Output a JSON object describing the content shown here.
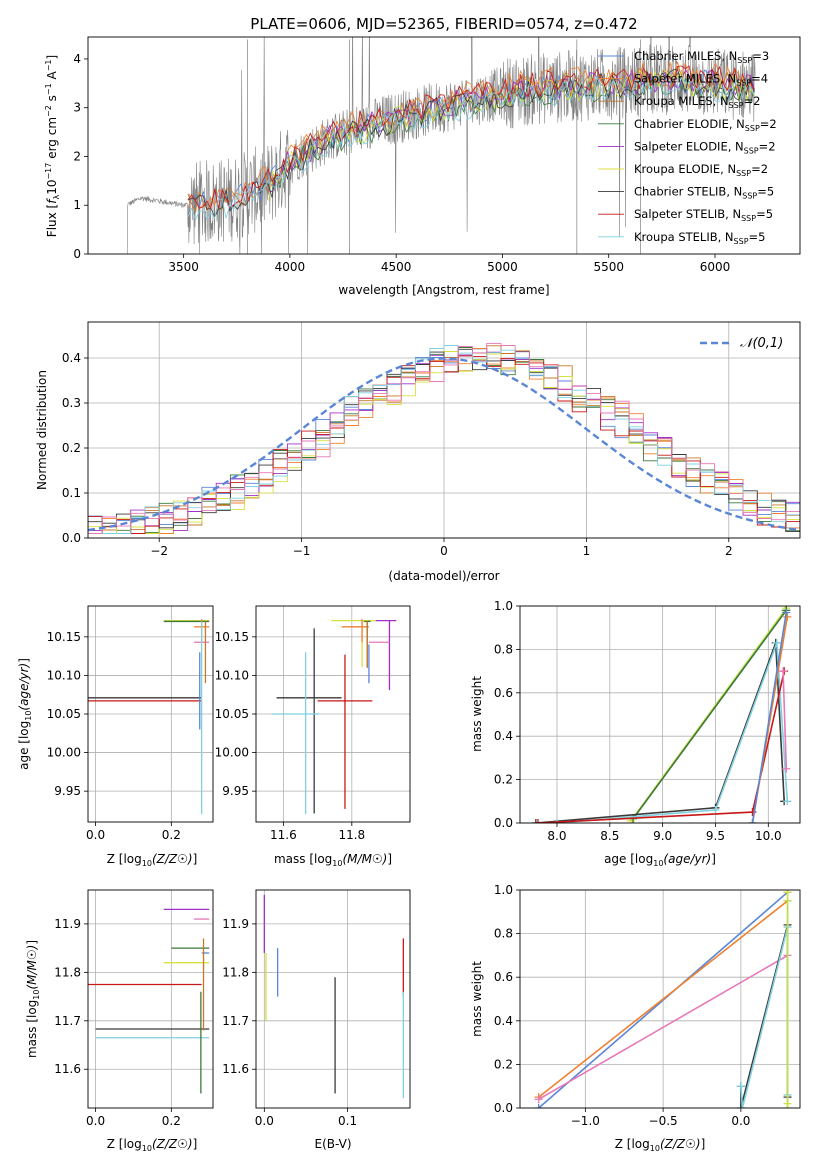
{
  "figure_title": "PLATE=0606, MJD=52365, FIBERID=0574, z=0.472",
  "colors": {
    "Chabrier MILES": "#5a86d6",
    "Salpeter MILES": "#f08030",
    "Kroupa MILES": "#c8782a",
    "Chabrier ELODIE": "#3a7a3a",
    "Salpeter ELODIE": "#a030c8",
    "Kroupa ELODIE": "#d8e040",
    "Chabrier STELIB": "#3a3a3a",
    "Salpeter STELIB": "#c81818",
    "Kroupa STELIB": "#80d0e0",
    "extra_pink": "#e878b8",
    "extra_lime": "#b8e050",
    "spectrum_data": "#808080",
    "grid": "#b0b0b0"
  },
  "chart_data": [
    {
      "id": "spectrum",
      "type": "line",
      "xlabel": "wavelength [Angstrom, rest frame]",
      "ylabel": "Flux [f_λ 10^-17 erg cm^-2 s^-1 A^-1]",
      "xlim": [
        3050,
        6400
      ],
      "ylim": [
        0,
        4.45
      ],
      "xticks": [
        3500,
        4000,
        4500,
        5000,
        5500,
        6000
      ],
      "yticks": [
        0,
        1,
        2,
        3,
        4
      ],
      "grid": false,
      "legend_position": "top-right",
      "legend": [
        {
          "base": "Chabrier MILES, N",
          "sub": "SSP",
          "tail": "=3"
        },
        {
          "base": "Salpeter MILES, N",
          "sub": "SSP",
          "tail": "=4"
        },
        {
          "base": "Kroupa MILES, N",
          "sub": "SSP",
          "tail": "=2"
        },
        {
          "base": "Chabrier ELODIE, N",
          "sub": "SSP",
          "tail": "=2"
        },
        {
          "base": "Salpeter ELODIE, N",
          "sub": "SSP",
          "tail": "=2"
        },
        {
          "base": "Kroupa ELODIE, N",
          "sub": "SSP",
          "tail": "=2"
        },
        {
          "base": "Chabrier STELIB, N",
          "sub": "SSP",
          "tail": "=5"
        },
        {
          "base": "Salpeter STELIB, N",
          "sub": "SSP",
          "tail": "=5"
        },
        {
          "base": "Kroupa STELIB, N",
          "sub": "SSP",
          "tail": "=5"
        }
      ],
      "legend_series": [
        "Chabrier MILES",
        "Salpeter MILES",
        "Kroupa MILES",
        "Chabrier ELODIE",
        "Salpeter ELODIE",
        "Kroupa ELODIE",
        "Chabrier STELIB",
        "Salpeter STELIB",
        "Kroupa STELIB"
      ],
      "data_start": 3230,
      "data_end": 6190,
      "continuum": [
        [
          3230,
          1.0
        ],
        [
          3300,
          1.15
        ],
        [
          3500,
          1.0
        ],
        [
          3700,
          1.1
        ],
        [
          3900,
          1.4
        ],
        [
          4000,
          1.9
        ],
        [
          4200,
          2.4
        ],
        [
          4500,
          2.8
        ],
        [
          4800,
          3.1
        ],
        [
          5000,
          3.3
        ],
        [
          5200,
          3.4
        ],
        [
          5500,
          3.5
        ],
        [
          5800,
          3.6
        ],
        [
          6000,
          3.5
        ],
        [
          6190,
          3.45
        ]
      ],
      "models": [
        {
          "name": "Chabrier MILES",
          "start": 3520,
          "end": 6190,
          "offset": 0.0
        },
        {
          "name": "Salpeter MILES",
          "start": 3520,
          "end": 6190,
          "offset": 0.15
        },
        {
          "name": "Kroupa MILES",
          "start": 3520,
          "end": 6190,
          "offset": 0.05
        },
        {
          "name": "Chabrier ELODIE",
          "start": 3900,
          "end": 6190,
          "offset": -0.1
        },
        {
          "name": "Salpeter ELODIE",
          "start": 3900,
          "end": 6190,
          "offset": 0.0
        },
        {
          "name": "Kroupa ELODIE",
          "start": 3900,
          "end": 6190,
          "offset": -0.05
        },
        {
          "name": "Chabrier STELIB",
          "start": 3520,
          "end": 6190,
          "offset": -0.05
        },
        {
          "name": "Salpeter STELIB",
          "start": 3520,
          "end": 6190,
          "offset": 0.1
        },
        {
          "name": "Kroupa STELIB",
          "start": 3520,
          "end": 6190,
          "offset": -0.1
        }
      ]
    },
    {
      "id": "residuals",
      "type": "step",
      "xlabel": "(data-model)/error",
      "ylabel": "Normed distribution",
      "xlim": [
        -2.5,
        2.5
      ],
      "ylim": [
        0,
        0.48
      ],
      "xticks": [
        -2,
        -1,
        0,
        1,
        2
      ],
      "yticks": [
        0.0,
        0.1,
        0.2,
        0.3,
        0.4
      ],
      "grid": true,
      "legend_position": "top-right",
      "reference_curve": {
        "name": "𝒩(0,1)",
        "mean": 0,
        "sigma": 1,
        "color": "#5a86d6",
        "dashed": true
      },
      "bin_width": 0.1,
      "series_order": [
        "Chabrier MILES",
        "Salpeter MILES",
        "Kroupa MILES",
        "Chabrier ELODIE",
        "Salpeter ELODIE",
        "Kroupa ELODIE",
        "Chabrier STELIB",
        "Salpeter STELIB",
        "Kroupa STELIB",
        "extra_pink"
      ],
      "series_shift": [
        0.0,
        0.18,
        0.15,
        -0.05,
        0.1,
        0.2,
        0.05,
        -0.1,
        -0.08,
        0.25
      ]
    },
    {
      "id": "age_vs_Z",
      "type": "errorbar",
      "xlabel": "Z [log10(Z/Z☉)]",
      "ylabel": "age  [log10(age/yr)]",
      "xlim": [
        -0.02,
        0.31
      ],
      "ylim": [
        9.91,
        10.19
      ],
      "xticks": [
        0.0,
        0.2
      ],
      "yticks": [
        9.95,
        10.0,
        10.05,
        10.1,
        10.15
      ],
      "grid": true,
      "points": [
        {
          "s": "Kroupa ELODIE",
          "x": 0.22,
          "y": 10.171,
          "xl": 0.04,
          "xh": 0.08,
          "yl": 0.0,
          "yh": 0.0
        },
        {
          "s": "Chabrier ELODIE",
          "x": 0.24,
          "y": 10.17,
          "xl": 0.06,
          "xh": 0.06,
          "yl": 0.0,
          "yh": 0.0
        },
        {
          "s": "Salpeter MILES",
          "x": 0.28,
          "y": 10.163,
          "xl": 0.02,
          "xh": 0.02,
          "yl": 0.02,
          "yh": 0.01
        },
        {
          "s": "extra_pink",
          "x": 0.28,
          "y": 10.143,
          "xl": 0.02,
          "xh": 0.02,
          "yl": 0.0,
          "yh": 0.0
        },
        {
          "s": "Kroupa MILES",
          "x": 0.29,
          "y": 10.17,
          "xl": 0.0,
          "xh": 0.0,
          "yl": 0.08,
          "yh": 0.0
        },
        {
          "s": "Chabrier STELIB",
          "x": 0.13,
          "y": 10.071,
          "xl": 0.15,
          "xh": 0.15,
          "yl": 0.0,
          "yh": 0.0
        },
        {
          "s": "Salpeter STELIB",
          "x": 0.13,
          "y": 10.067,
          "xl": 0.15,
          "xh": 0.15,
          "yl": 0.0,
          "yh": 0.0
        },
        {
          "s": "Kroupa STELIB",
          "x": 0.28,
          "y": 10.05,
          "xl": 0.0,
          "xh": 0.0,
          "yl": 0.13,
          "yh": 0.12
        },
        {
          "s": "Chabrier MILES",
          "x": 0.275,
          "y": 10.09,
          "xl": 0.0,
          "xh": 0.0,
          "yl": 0.06,
          "yh": 0.04
        }
      ]
    },
    {
      "id": "age_vs_mass",
      "type": "errorbar",
      "xlabel": "mass [log10(M/M☉)]",
      "ylabel": "",
      "xlim": [
        11.52,
        11.97
      ],
      "ylim": [
        9.91,
        10.19
      ],
      "xticks": [
        11.6,
        11.8
      ],
      "yticks": [
        9.95,
        10.0,
        10.05,
        10.1,
        10.15
      ],
      "grid": true,
      "points": [
        {
          "s": "Kroupa ELODIE",
          "x": 11.83,
          "y": 10.171,
          "xl": 0.09,
          "xh": 0.04,
          "yl": 0.06,
          "yh": 0.0
        },
        {
          "s": "Salpeter ELODIE",
          "x": 11.91,
          "y": 10.171,
          "xl": 0.04,
          "xh": 0.02,
          "yl": 0.09,
          "yh": 0.0
        },
        {
          "s": "Salpeter MILES",
          "x": 11.83,
          "y": 10.163,
          "xl": 0.06,
          "xh": 0.02,
          "yl": 0.02,
          "yh": 0.01
        },
        {
          "s": "extra_pink",
          "x": 11.87,
          "y": 10.143,
          "xl": 0.02,
          "xh": 0.04,
          "yl": 0.0,
          "yh": 0.0
        },
        {
          "s": "Chabrier ELODIE",
          "x": 11.845,
          "y": 10.17,
          "xl": 0.01,
          "xh": 0.01,
          "yl": 0.06,
          "yh": 0.0
        },
        {
          "s": "Kroupa MILES",
          "x": 11.845,
          "y": 10.17,
          "xl": 0.0,
          "xh": 0.0,
          "yl": 0.06,
          "yh": 0.0
        },
        {
          "s": "Chabrier STELIB",
          "x": 11.69,
          "y": 10.071,
          "xl": 0.11,
          "xh": 0.08,
          "yl": 0.15,
          "yh": 0.09
        },
        {
          "s": "Salpeter STELIB",
          "x": 11.78,
          "y": 10.067,
          "xl": 0.08,
          "xh": 0.08,
          "yl": 0.14,
          "yh": 0.06
        },
        {
          "s": "Kroupa STELIB",
          "x": 11.665,
          "y": 10.05,
          "xl": 0.1,
          "xh": 0.04,
          "yl": 0.13,
          "yh": 0.08
        },
        {
          "s": "Chabrier MILES",
          "x": 11.85,
          "y": 10.12,
          "xl": 0.0,
          "xh": 0.0,
          "yl": 0.03,
          "yh": 0.02
        }
      ]
    },
    {
      "id": "weight_vs_age",
      "type": "line",
      "xlabel": "age  [log10(age/yr)]",
      "ylabel": "mass weight",
      "xlim": [
        7.65,
        10.3
      ],
      "ylim": [
        0,
        1.0
      ],
      "xticks": [
        8.0,
        8.5,
        9.0,
        9.5,
        10.0
      ],
      "yticks": [
        0.0,
        0.2,
        0.4,
        0.6,
        0.8,
        1.0
      ],
      "grid": true,
      "series": [
        {
          "s": "Kroupa ELODIE",
          "points": [
            [
              8.7,
              0.01
            ],
            [
              10.17,
              0.99
            ]
          ]
        },
        {
          "s": "extra_lime",
          "points": [
            [
              8.72,
              0.02
            ],
            [
              10.16,
              0.98
            ]
          ]
        },
        {
          "s": "Chabrier ELODIE",
          "points": [
            [
              8.72,
              0.02
            ],
            [
              10.17,
              0.98
            ]
          ]
        },
        {
          "s": "Chabrier STELIB",
          "points": [
            [
              7.8,
              0.0
            ],
            [
              9.5,
              0.07
            ],
            [
              10.07,
              0.83
            ],
            [
              10.15,
              0.1
            ]
          ]
        },
        {
          "s": "Kroupa STELIB",
          "points": [
            [
              8.0,
              0.0
            ],
            [
              9.5,
              0.06
            ],
            [
              10.08,
              0.83
            ],
            [
              10.18,
              0.1
            ]
          ]
        },
        {
          "s": "Salpeter STELIB",
          "points": [
            [
              7.82,
              0.0
            ],
            [
              9.85,
              0.05
            ],
            [
              10.15,
              0.7
            ]
          ]
        },
        {
          "s": "Salpeter MILES",
          "points": [
            [
              9.85,
              0.0
            ],
            [
              10.18,
              0.95
            ]
          ]
        },
        {
          "s": "Chabrier MILES",
          "points": [
            [
              9.85,
              0.0
            ],
            [
              10.17,
              0.97
            ]
          ]
        },
        {
          "s": "extra_pink",
          "points": [
            [
              10.14,
              0.7
            ],
            [
              10.17,
              0.25
            ]
          ]
        }
      ]
    },
    {
      "id": "mass_vs_Z",
      "type": "errorbar",
      "xlabel": "Z [log10(Z/Z☉)]",
      "ylabel": "mass [log10(M/M☉)]",
      "xlim": [
        -0.02,
        0.31
      ],
      "ylim": [
        11.52,
        11.97
      ],
      "xticks": [
        0.0,
        0.2
      ],
      "yticks": [
        11.6,
        11.7,
        11.8,
        11.9
      ],
      "grid": true,
      "points": [
        {
          "s": "Salpeter ELODIE",
          "x": 0.24,
          "y": 11.93,
          "xl": 0.06,
          "xh": 0.06,
          "yl": 0.0,
          "yh": 0.0
        },
        {
          "s": "extra_pink",
          "x": 0.28,
          "y": 11.91,
          "xl": 0.02,
          "xh": 0.02,
          "yl": 0.0,
          "yh": 0.0
        },
        {
          "s": "Chabrier ELODIE",
          "x": 0.25,
          "y": 11.85,
          "xl": 0.05,
          "xh": 0.05,
          "yl": 0.0,
          "yh": 0.0
        },
        {
          "s": "Kroupa ELODIE",
          "x": 0.24,
          "y": 11.82,
          "xl": 0.06,
          "xh": 0.06,
          "yl": 0.0,
          "yh": 0.0
        },
        {
          "s": "Chabrier MILES",
          "x": 0.29,
          "y": 11.84,
          "xl": 0.01,
          "xh": 0.01,
          "yl": 0.0,
          "yh": 0.0
        },
        {
          "s": "Salpeter STELIB",
          "x": 0.14,
          "y": 11.775,
          "xl": 0.16,
          "xh": 0.14,
          "yl": 0.0,
          "yh": 0.0
        },
        {
          "s": "Chabrier STELIB",
          "x": 0.15,
          "y": 11.683,
          "xl": 0.15,
          "xh": 0.15,
          "yl": 0.0,
          "yh": 0.0
        },
        {
          "s": "Kroupa STELIB",
          "x": 0.15,
          "y": 11.665,
          "xl": 0.15,
          "xh": 0.15,
          "yl": 0.0,
          "yh": 0.0
        },
        {
          "s": "Kroupa MILES",
          "x": 0.285,
          "y": 11.8,
          "xl": 0.0,
          "xh": 0.0,
          "yl": 0.12,
          "yh": 0.07
        },
        {
          "s": "Chabrier ELODIE",
          "x": 0.278,
          "y": 11.7,
          "xl": 0.0,
          "xh": 0.0,
          "yl": 0.15,
          "yh": 0.06
        }
      ]
    },
    {
      "id": "mass_vs_ebv",
      "type": "errorbar",
      "xlabel": "E(B-V)",
      "ylabel": "",
      "xlim": [
        -0.01,
        0.175
      ],
      "ylim": [
        11.52,
        11.97
      ],
      "xticks": [
        0.0,
        0.1
      ],
      "yticks": [
        11.6,
        11.7,
        11.8,
        11.9
      ],
      "grid": true,
      "points": [
        {
          "s": "Salpeter ELODIE",
          "x": 0.0,
          "y": 11.9,
          "xl": 0.0,
          "xh": 0.0,
          "yl": 0.06,
          "yh": 0.06
        },
        {
          "s": "Kroupa ELODIE",
          "x": 0.002,
          "y": 11.77,
          "xl": 0.0,
          "xh": 0.0,
          "yl": 0.07,
          "yh": 0.07
        },
        {
          "s": "Chabrier MILES",
          "x": 0.016,
          "y": 11.8,
          "xl": 0.0,
          "xh": 0.0,
          "yl": 0.05,
          "yh": 0.05
        },
        {
          "s": "Chabrier STELIB",
          "x": 0.085,
          "y": 11.67,
          "xl": 0.0,
          "xh": 0.0,
          "yl": 0.12,
          "yh": 0.12
        },
        {
          "s": "Salpeter STELIB",
          "x": 0.167,
          "y": 11.81,
          "xl": 0.0,
          "xh": 0.0,
          "yl": 0.06,
          "yh": 0.06
        },
        {
          "s": "Kroupa STELIB",
          "x": 0.167,
          "y": 11.65,
          "xl": 0.0,
          "xh": 0.0,
          "yl": 0.11,
          "yh": 0.11
        }
      ]
    },
    {
      "id": "weight_vs_Z",
      "type": "line",
      "xlabel": "Z [log10(Z/Z☉)]",
      "ylabel": "mass weight",
      "xlim": [
        -1.42,
        0.38
      ],
      "ylim": [
        0,
        1.0
      ],
      "xticks": [
        -1.0,
        -0.5,
        0.0
      ],
      "yticks": [
        0.0,
        0.2,
        0.4,
        0.6,
        0.8,
        1.0
      ],
      "grid": true,
      "series": [
        {
          "s": "Chabrier MILES",
          "points": [
            [
              -1.3,
              0.0
            ],
            [
              0.3,
              0.99
            ]
          ]
        },
        {
          "s": "Salpeter MILES",
          "points": [
            [
              -1.3,
              0.05
            ],
            [
              0.3,
              0.95
            ]
          ]
        },
        {
          "s": "extra_pink",
          "points": [
            [
              -1.3,
              0.04
            ],
            [
              0.3,
              0.7
            ]
          ]
        },
        {
          "s": "Chabrier STELIB",
          "points": [
            [
              0.0,
              0.1
            ],
            [
              0.0,
              0.0
            ],
            [
              0.3,
              0.84
            ],
            [
              0.3,
              0.05
            ]
          ]
        },
        {
          "s": "Kroupa STELIB",
          "points": [
            [
              0.0,
              0.1
            ],
            [
              0.01,
              0.0
            ],
            [
              0.3,
              0.83
            ],
            [
              0.3,
              0.06
            ]
          ]
        },
        {
          "s": "Kroupa ELODIE",
          "points": [
            [
              0.3,
              0.99
            ],
            [
              0.3,
              0.02
            ]
          ]
        },
        {
          "s": "extra_lime",
          "points": [
            [
              0.3,
              0.95
            ],
            [
              0.3,
              0.0
            ]
          ]
        }
      ]
    }
  ]
}
